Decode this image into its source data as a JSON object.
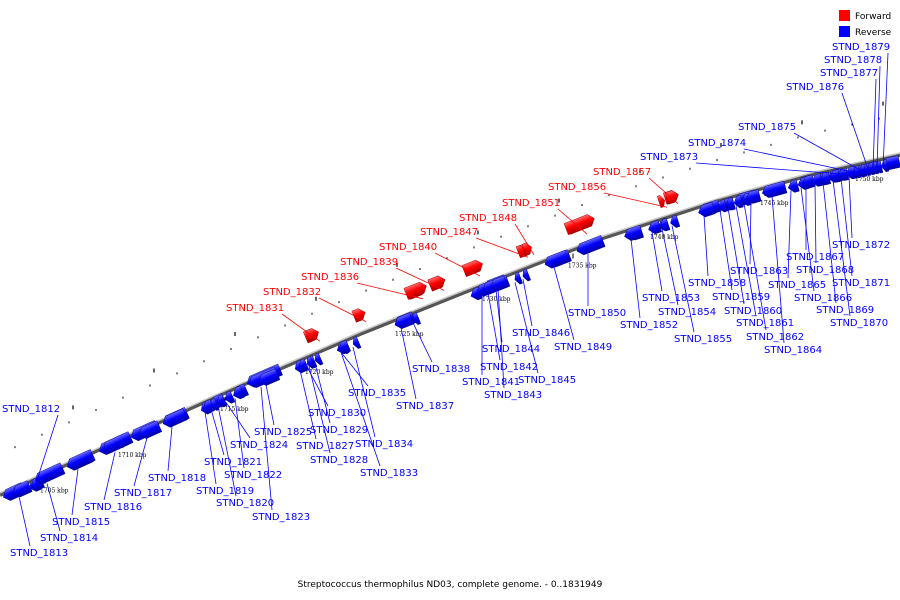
{
  "legend": [
    {
      "label": "Forward",
      "color": "#ff0000"
    },
    {
      "label": "Reverse",
      "color": "#0000ff"
    }
  ],
  "caption": "Streptococcus thermophilus ND03, complete genome. - 0..1831949",
  "colors": {
    "forward": "#ff0000",
    "reverse": "#0000ff",
    "backbone": "#808080"
  },
  "ticks": [
    "1705 kbp",
    "1710 kbp",
    "1715 kbp",
    "1720 kbp",
    "1725 kbp",
    "1730 kbp",
    "1735 kbp",
    "1740 kbp",
    "1745 kbp",
    "1750 kbp"
  ],
  "genes": [
    {
      "label": "STND_1812",
      "strand": "reverse"
    },
    {
      "label": "STND_1813",
      "strand": "reverse"
    },
    {
      "label": "STND_1814",
      "strand": "reverse"
    },
    {
      "label": "STND_1815",
      "strand": "reverse"
    },
    {
      "label": "STND_1816",
      "strand": "reverse"
    },
    {
      "label": "STND_1817",
      "strand": "reverse"
    },
    {
      "label": "STND_1818",
      "strand": "reverse"
    },
    {
      "label": "STND_1819",
      "strand": "reverse"
    },
    {
      "label": "STND_1820",
      "strand": "reverse"
    },
    {
      "label": "STND_1821",
      "strand": "reverse"
    },
    {
      "label": "STND_1822",
      "strand": "reverse"
    },
    {
      "label": "STND_1823",
      "strand": "reverse"
    },
    {
      "label": "STND_1824",
      "strand": "reverse"
    },
    {
      "label": "STND_1825",
      "strand": "reverse"
    },
    {
      "label": "STND_1827",
      "strand": "reverse"
    },
    {
      "label": "STND_1828",
      "strand": "reverse"
    },
    {
      "label": "STND_1829",
      "strand": "reverse"
    },
    {
      "label": "STND_1830",
      "strand": "reverse"
    },
    {
      "label": "STND_1831",
      "strand": "forward"
    },
    {
      "label": "STND_1832",
      "strand": "forward"
    },
    {
      "label": "STND_1833",
      "strand": "reverse"
    },
    {
      "label": "STND_1834",
      "strand": "reverse"
    },
    {
      "label": "STND_1835",
      "strand": "reverse"
    },
    {
      "label": "STND_1836",
      "strand": "forward"
    },
    {
      "label": "STND_1837",
      "strand": "reverse"
    },
    {
      "label": "STND_1838",
      "strand": "reverse"
    },
    {
      "label": "STND_1839",
      "strand": "forward"
    },
    {
      "label": "STND_1840",
      "strand": "forward"
    },
    {
      "label": "STND_1841",
      "strand": "reverse"
    },
    {
      "label": "STND_1842",
      "strand": "reverse"
    },
    {
      "label": "STND_1843",
      "strand": "reverse"
    },
    {
      "label": "STND_1844",
      "strand": "reverse"
    },
    {
      "label": "STND_1845",
      "strand": "reverse"
    },
    {
      "label": "STND_1846",
      "strand": "reverse"
    },
    {
      "label": "STND_1847",
      "strand": "forward"
    },
    {
      "label": "STND_1848",
      "strand": "forward"
    },
    {
      "label": "STND_1849",
      "strand": "reverse"
    },
    {
      "label": "STND_1850",
      "strand": "reverse"
    },
    {
      "label": "STND_1851",
      "strand": "forward"
    },
    {
      "label": "STND_1852",
      "strand": "reverse"
    },
    {
      "label": "STND_1853",
      "strand": "reverse"
    },
    {
      "label": "STND_1854",
      "strand": "reverse"
    },
    {
      "label": "STND_1855",
      "strand": "reverse"
    },
    {
      "label": "STND_1856",
      "strand": "forward"
    },
    {
      "label": "STND_1857",
      "strand": "forward"
    },
    {
      "label": "STND_1858",
      "strand": "reverse"
    },
    {
      "label": "STND_1859",
      "strand": "reverse"
    },
    {
      "label": "STND_1860",
      "strand": "reverse"
    },
    {
      "label": "STND_1861",
      "strand": "reverse"
    },
    {
      "label": "STND_1862",
      "strand": "reverse"
    },
    {
      "label": "STND_1863",
      "strand": "reverse"
    },
    {
      "label": "STND_1864",
      "strand": "reverse"
    },
    {
      "label": "STND_1865",
      "strand": "reverse"
    },
    {
      "label": "STND_1866",
      "strand": "reverse"
    },
    {
      "label": "STND_1867",
      "strand": "reverse"
    },
    {
      "label": "STND_1868",
      "strand": "reverse"
    },
    {
      "label": "STND_1869",
      "strand": "reverse"
    },
    {
      "label": "STND_1870",
      "strand": "reverse"
    },
    {
      "label": "STND_1871",
      "strand": "reverse"
    },
    {
      "label": "STND_1872",
      "strand": "reverse"
    },
    {
      "label": "STND_1873",
      "strand": "reverse"
    },
    {
      "label": "STND_1874",
      "strand": "reverse"
    },
    {
      "label": "STND_1875",
      "strand": "reverse"
    },
    {
      "label": "STND_1876",
      "strand": "reverse"
    },
    {
      "label": "STND_1877",
      "strand": "reverse"
    },
    {
      "label": "STND_1878",
      "strand": "reverse"
    },
    {
      "label": "STND_1879",
      "strand": "reverse"
    }
  ]
}
